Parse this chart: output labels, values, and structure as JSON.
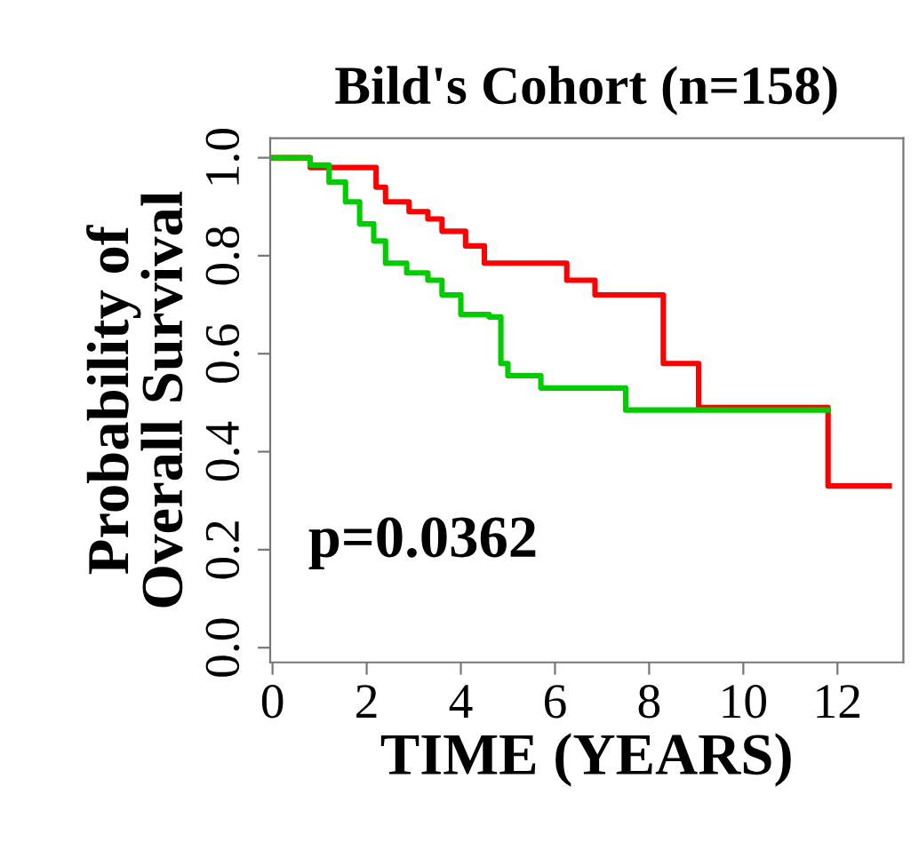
{
  "chart_data": {
    "type": "step",
    "title": "Bild's Cohort (n=158)",
    "xlabel": "TIME (YEARS)",
    "ylabel": "Probability of\nOverall Survival",
    "annotations": [
      "p=0.0362"
    ],
    "series": [
      {
        "color": "#ff0000",
        "x": [
          0,
          0.8,
          2.0,
          2.2,
          2.4,
          2.9,
          3.3,
          3.6,
          4.1,
          4.5,
          6.25,
          6.85,
          8.3,
          9.05,
          11.8,
          13.1
        ],
        "values": [
          1.0,
          0.98,
          0.98,
          0.94,
          0.91,
          0.89,
          0.875,
          0.85,
          0.82,
          0.785,
          0.75,
          0.72,
          0.58,
          0.49,
          0.33,
          0.33
        ]
      },
      {
        "color": "#00cc00",
        "x": [
          0,
          0.6,
          0.8,
          1.2,
          1.55,
          1.85,
          2.15,
          2.4,
          2.85,
          3.3,
          3.6,
          4.0,
          4.6,
          4.85,
          5.0,
          5.7,
          7.5,
          11.8
        ],
        "values": [
          1.0,
          1.0,
          0.985,
          0.95,
          0.91,
          0.865,
          0.83,
          0.785,
          0.765,
          0.75,
          0.72,
          0.68,
          0.675,
          0.58,
          0.555,
          0.53,
          0.485,
          0.485
        ]
      }
    ],
    "xlim": [
      -0.05,
      13.4
    ],
    "ylim": [
      -0.03,
      1.04
    ],
    "xticks": [
      0,
      2,
      4,
      6,
      8,
      10,
      12
    ],
    "yticks": [
      {
        "value": 0,
        "label": "0.0"
      },
      {
        "value": 0.2,
        "label": "0.2"
      },
      {
        "value": 0.4,
        "label": "0.4"
      },
      {
        "value": 0.6,
        "label": "0.6"
      },
      {
        "value": 0.8,
        "label": "0.8"
      },
      {
        "value": 1,
        "label": "1.0"
      }
    ],
    "grid": false,
    "line_style": "solid"
  }
}
